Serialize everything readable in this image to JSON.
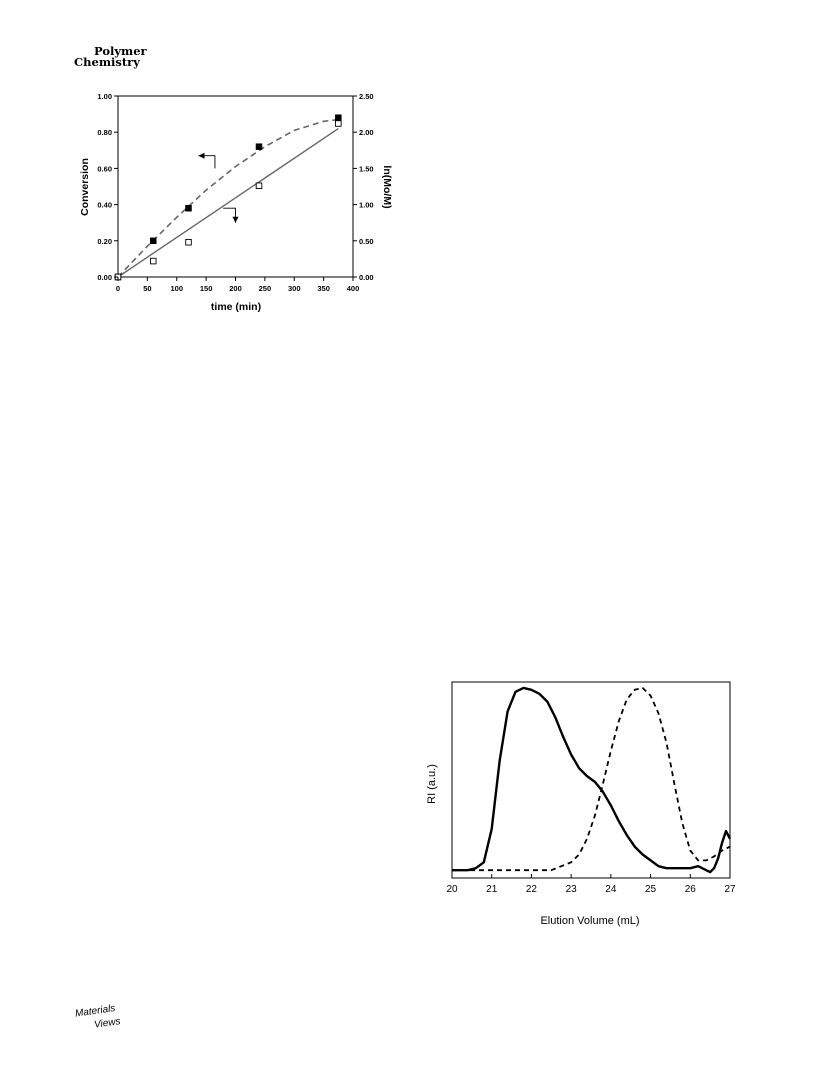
{
  "header": {
    "journal_line1": "Polymer",
    "journal_line2": "Chemistry"
  },
  "footer": {
    "logo_line1": "Materials",
    "logo_line2": "Views"
  },
  "chart_data": [
    {
      "type": "scatter",
      "x_axis": {
        "label": "time (min)",
        "lim": [
          0,
          400
        ],
        "ticks": [
          "0",
          "50",
          "100",
          "150",
          "200",
          "250",
          "300",
          "350",
          "400"
        ],
        "tick_values": [
          0,
          50,
          100,
          150,
          200,
          250,
          300,
          350,
          400
        ]
      },
      "y_axis_left": {
        "label": "Conversion",
        "lim": [
          0,
          1.0
        ],
        "ticks": [
          "0.00",
          "0.20",
          "0.40",
          "0.60",
          "0.80",
          "1.00"
        ],
        "tick_values": [
          0,
          0.2,
          0.4,
          0.6,
          0.8,
          1.0
        ]
      },
      "y_axis_right": {
        "label": "ln(Mo/M)",
        "lim": [
          0,
          2.5
        ],
        "ticks": [
          "0.00",
          "0.50",
          "1.00",
          "1.50",
          "2.00",
          "2.50"
        ],
        "tick_values": [
          0,
          0.5,
          1.0,
          1.5,
          2.0,
          2.5
        ]
      },
      "series": [
        {
          "marker": "filled-square",
          "axis": "left",
          "fit": "dashed-curve",
          "x": [
            0,
            60,
            120,
            240,
            375
          ],
          "y": [
            0.0,
            0.2,
            0.38,
            0.72,
            0.88
          ]
        },
        {
          "marker": "open-square",
          "axis": "right",
          "fit": "solid-line",
          "x": [
            0,
            60,
            120,
            240,
            375
          ],
          "y": [
            0.0,
            0.22,
            0.48,
            1.26,
            2.12
          ]
        }
      ],
      "fit_lines": {
        "dashed_curve_left_axis": [
          [
            0,
            0
          ],
          [
            50,
            0.17
          ],
          [
            100,
            0.33
          ],
          [
            150,
            0.48
          ],
          [
            200,
            0.61
          ],
          [
            250,
            0.72
          ],
          [
            300,
            0.81
          ],
          [
            350,
            0.86
          ],
          [
            375,
            0.87
          ]
        ],
        "solid_line_right_axis": [
          [
            0,
            0
          ],
          [
            375,
            2.05
          ]
        ]
      },
      "arrows": [
        {
          "points_to": "left axis",
          "start": [
            165,
            0.6
          ],
          "corner": [
            165,
            0.67
          ],
          "tip": [
            137,
            0.67
          ]
        },
        {
          "points_to": "right axis",
          "start": [
            179,
            0.38
          ],
          "corner": [
            200,
            0.38
          ],
          "tip": [
            200,
            0.3
          ]
        }
      ]
    },
    {
      "type": "line",
      "x_axis": {
        "label": "Elution Volume (mL)",
        "lim": [
          20,
          27
        ],
        "ticks": [
          "20",
          "21",
          "22",
          "23",
          "24",
          "25",
          "26",
          "27"
        ],
        "tick_values": [
          20,
          21,
          22,
          23,
          24,
          25,
          26,
          27
        ]
      },
      "y_axis": {
        "label": "RI (a.u.)",
        "lim": [
          0,
          1.0
        ],
        "ticks_shown": false
      },
      "series": [
        {
          "style": "solid",
          "x": [
            20.0,
            20.4,
            20.6,
            20.8,
            21.0,
            21.2,
            21.4,
            21.6,
            21.8,
            22.0,
            22.2,
            22.4,
            22.6,
            22.8,
            23.0,
            23.2,
            23.4,
            23.6,
            23.8,
            24.0,
            24.2,
            24.4,
            24.6,
            24.8,
            25.0,
            25.2,
            25.4,
            25.6,
            25.8,
            26.0,
            26.2,
            26.4,
            26.5,
            26.6,
            26.7,
            26.8,
            26.9,
            27.0
          ],
          "y": [
            0.04,
            0.04,
            0.05,
            0.08,
            0.25,
            0.6,
            0.85,
            0.95,
            0.97,
            0.96,
            0.94,
            0.9,
            0.82,
            0.72,
            0.63,
            0.56,
            0.52,
            0.49,
            0.44,
            0.37,
            0.29,
            0.22,
            0.16,
            0.12,
            0.09,
            0.06,
            0.05,
            0.05,
            0.05,
            0.05,
            0.06,
            0.04,
            0.03,
            0.05,
            0.1,
            0.18,
            0.24,
            0.2
          ]
        },
        {
          "style": "dashed",
          "x": [
            20.0,
            20.5,
            21.0,
            21.5,
            22.0,
            22.5,
            23.0,
            23.2,
            23.4,
            23.6,
            23.8,
            24.0,
            24.2,
            24.4,
            24.6,
            24.8,
            25.0,
            25.2,
            25.4,
            25.6,
            25.8,
            26.0,
            26.2,
            26.4,
            26.6,
            26.8,
            27.0
          ],
          "y": [
            0.04,
            0.04,
            0.04,
            0.04,
            0.04,
            0.04,
            0.08,
            0.12,
            0.2,
            0.32,
            0.48,
            0.65,
            0.8,
            0.91,
            0.96,
            0.97,
            0.93,
            0.84,
            0.69,
            0.48,
            0.28,
            0.14,
            0.09,
            0.09,
            0.11,
            0.14,
            0.16
          ]
        }
      ]
    }
  ]
}
